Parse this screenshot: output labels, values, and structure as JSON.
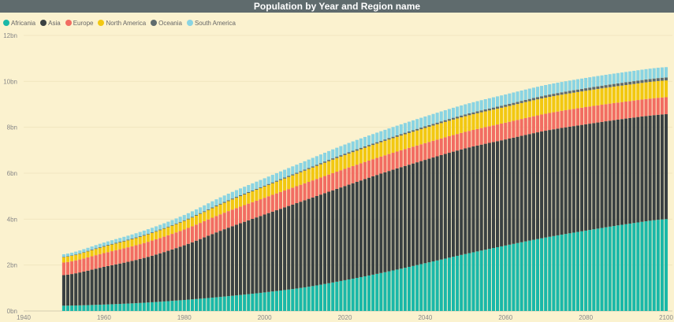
{
  "header": {
    "title": "Population by Year and Region name"
  },
  "chart_data": {
    "type": "bar",
    "stacked": true,
    "title": "Population by Year and Region name",
    "xlabel": "",
    "ylabel": "",
    "xlim": [
      1940,
      2100
    ],
    "ylim": [
      0,
      12
    ],
    "x_ticks": [
      "1940",
      "1960",
      "1980",
      "2000",
      "2020",
      "2040",
      "2060",
      "2080",
      "2100"
    ],
    "y_ticks": [
      "0bn",
      "2bn",
      "4bn",
      "6bn",
      "8bn",
      "10bn",
      "12bn"
    ],
    "y_unit": "bn",
    "grid": true,
    "legend_position": "top-left",
    "colors": {
      "Africania": "#1ab8a8",
      "Asia": "#3a4142",
      "Europe": "#f26d62",
      "North America": "#f2c811",
      "Oceania": "#5f6b6d",
      "South America": "#8ad4e2"
    },
    "x": [
      1950,
      1960,
      1970,
      1980,
      1990,
      2000,
      2010,
      2020,
      2030,
      2040,
      2050,
      2060,
      2070,
      2080,
      2090,
      2100
    ],
    "series": [
      {
        "name": "Africania",
        "values": [
          0.23,
          0.28,
          0.36,
          0.48,
          0.63,
          0.81,
          1.03,
          1.34,
          1.69,
          2.08,
          2.48,
          2.85,
          3.2,
          3.5,
          3.78,
          4.0
        ]
      },
      {
        "name": "Asia",
        "values": [
          1.33,
          1.64,
          1.95,
          2.38,
          2.93,
          3.39,
          3.79,
          4.1,
          4.35,
          4.5,
          4.6,
          4.62,
          4.65,
          4.63,
          4.6,
          4.57
        ]
      },
      {
        "name": "Europe",
        "values": [
          0.55,
          0.6,
          0.65,
          0.69,
          0.72,
          0.73,
          0.74,
          0.75,
          0.74,
          0.73,
          0.72,
          0.73,
          0.74,
          0.75,
          0.74,
          0.74
        ]
      },
      {
        "name": "North America",
        "values": [
          0.23,
          0.28,
          0.32,
          0.37,
          0.43,
          0.49,
          0.55,
          0.6,
          0.63,
          0.66,
          0.68,
          0.69,
          0.7,
          0.71,
          0.72,
          0.73
        ]
      },
      {
        "name": "Oceania",
        "values": [
          0.02,
          0.03,
          0.03,
          0.03,
          0.04,
          0.04,
          0.05,
          0.06,
          0.06,
          0.07,
          0.08,
          0.09,
          0.1,
          0.11,
          0.12,
          0.13
        ]
      },
      {
        "name": "South America",
        "values": [
          0.11,
          0.15,
          0.19,
          0.23,
          0.28,
          0.32,
          0.36,
          0.4,
          0.42,
          0.43,
          0.44,
          0.45,
          0.45,
          0.45,
          0.45,
          0.45
        ]
      }
    ]
  }
}
